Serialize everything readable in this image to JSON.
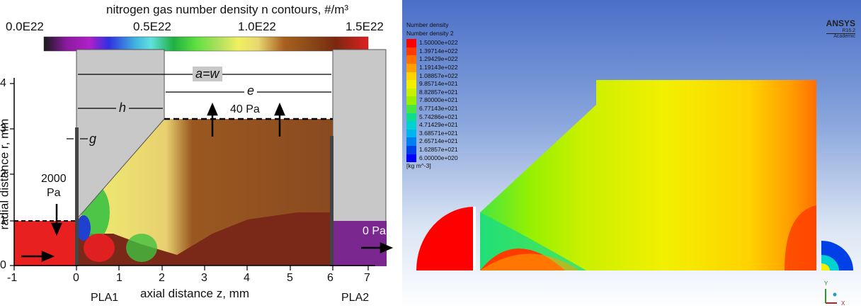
{
  "left": {
    "colorbar_title": "nitrogen gas number density n contours, #/m³",
    "colorbar_ticks": [
      "0.0E22",
      "0.5E22",
      "1.0E22",
      "1.5E22"
    ],
    "x_axis_label": "axial distance z, mm",
    "y_axis_label": "radial distance r, mm",
    "x_ticks": [
      "-1",
      "0",
      "1",
      "2",
      "3",
      "4",
      "5",
      "6",
      "7"
    ],
    "y_ticks": [
      "0",
      "1",
      "2",
      "3",
      "4"
    ],
    "annotations": {
      "a_w": "a=w",
      "e": "e",
      "h": "h",
      "g": "g",
      "p40": "40 Pa",
      "p2000": "2000",
      "pa": "Pa",
      "p0": "0 Pa",
      "pla1": "PLA1",
      "pla2": "PLA2"
    }
  },
  "right": {
    "legend_title": "Number density",
    "legend_subtitle": "Number density 2",
    "legend_values": [
      "1.50000e+022",
      "1.39714e+022",
      "1.29429e+022",
      "1.19143e+022",
      "1.08857e+022",
      "9.85714e+021",
      "8.82857e+021",
      "7.80000e+021",
      "6.77143e+021",
      "5.74286e+021",
      "4.71429e+021",
      "3.68571e+021",
      "2.65714e+021",
      "1.62857e+021",
      "6.00000e+020"
    ],
    "legend_colors": [
      "#ff0000",
      "#ff3b00",
      "#ff7000",
      "#ffa000",
      "#ffd200",
      "#f2f000",
      "#c8f000",
      "#96f000",
      "#48e640",
      "#10dc90",
      "#00d2d2",
      "#00b4f0",
      "#0080f0",
      "#0040e6",
      "#0000ff"
    ],
    "legend_unit": "[kg m^-3]",
    "brand": "ANSYS",
    "version": "R16.2",
    "edition": "Academic",
    "axis_y": "Y",
    "axis_x": "X"
  }
}
